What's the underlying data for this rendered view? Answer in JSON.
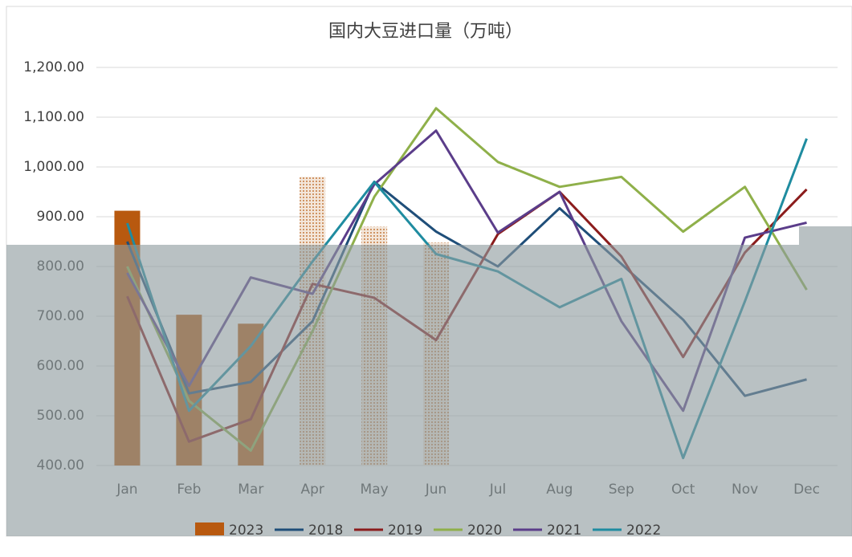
{
  "chart_data": {
    "type": "bar-line",
    "title": "国内大豆进口量（万吨）",
    "categories": [
      "Jan",
      "Feb",
      "Mar",
      "Apr",
      "May",
      "Jun",
      "Jul",
      "Aug",
      "Sep",
      "Oct",
      "Nov",
      "Dec"
    ],
    "ylim": [
      400,
      1200
    ],
    "yticks": [
      {
        "value": 400,
        "label": "400.00"
      },
      {
        "value": 500,
        "label": "500.00"
      },
      {
        "value": 600,
        "label": "600.00"
      },
      {
        "value": 700,
        "label": "700.00"
      },
      {
        "value": 800,
        "label": "800.00"
      },
      {
        "value": 900,
        "label": "900.00"
      },
      {
        "value": 1000,
        "label": "1,000.00"
      },
      {
        "value": 1100,
        "label": "1,100.00"
      },
      {
        "value": 1200,
        "label": "1,200.00"
      }
    ],
    "grid": true,
    "series": [
      {
        "name": "2023",
        "kind": "bar",
        "color": "#b8590f",
        "values": [
          912,
          703,
          685,
          980,
          880,
          848,
          null,
          null,
          null,
          null,
          null,
          null
        ],
        "styles": [
          "solid",
          "solid",
          "solid",
          "dotted",
          "dotted",
          "dotted",
          null,
          null,
          null,
          null,
          null,
          null
        ]
      },
      {
        "name": "2018",
        "kind": "line",
        "color": "#1f4e79",
        "values": [
          850,
          545,
          568,
          690,
          970,
          870,
          800,
          917,
          805,
          693,
          540,
          573
        ]
      },
      {
        "name": "2019",
        "kind": "line",
        "color": "#8b1c1c",
        "values": [
          740,
          448,
          493,
          765,
          737,
          652,
          865,
          950,
          820,
          618,
          828,
          955
        ]
      },
      {
        "name": "2020",
        "kind": "line",
        "color": "#8fb04a",
        "values": [
          800,
          530,
          430,
          670,
          940,
          1118,
          1010,
          960,
          980,
          870,
          960,
          753
        ]
      },
      {
        "name": "2021",
        "kind": "line",
        "color": "#5b3d8a",
        "values": [
          787,
          560,
          778,
          745,
          965,
          1073,
          868,
          950,
          690,
          510,
          858,
          888
        ]
      },
      {
        "name": "2022",
        "kind": "line",
        "color": "#1f8ca0",
        "values": [
          887,
          510,
          640,
          810,
          970,
          825,
          790,
          718,
          775,
          415,
          730,
          1057
        ]
      }
    ]
  }
}
